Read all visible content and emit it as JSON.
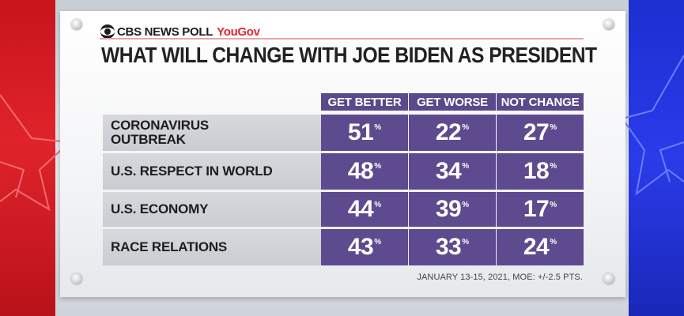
{
  "brand": {
    "network": "CBS NEWS POLL",
    "partner": "YouGov"
  },
  "title": "WHAT WILL CHANGE WITH JOE BIDEN AS PRESIDENT",
  "footnote": "JANUARY 13-15, 2021, MOE: +/-2.5 PTS.",
  "colors": {
    "header_bg": "#5a4a8c",
    "cell_bg": "#5e4a8e",
    "label_bg": "#cfd1d5",
    "yougov_red": "#e5262f",
    "left_bg": "#d51e26",
    "right_bg": "#2535dd"
  },
  "chart_data": {
    "type": "table",
    "title": "WHAT WILL CHANGE WITH JOE BIDEN AS PRESIDENT",
    "columns": [
      "GET BETTER",
      "GET WORSE",
      "NOT CHANGE"
    ],
    "rows": [
      {
        "label_lines": [
          "CORONAVIRUS",
          "OUTBREAK"
        ],
        "values": [
          51,
          22,
          27
        ]
      },
      {
        "label_lines": [
          "U.S. RESPECT IN WORLD"
        ],
        "values": [
          48,
          34,
          18
        ]
      },
      {
        "label_lines": [
          "U.S. ECONOMY"
        ],
        "values": [
          44,
          39,
          17
        ]
      },
      {
        "label_lines": [
          "RACE RELATIONS"
        ],
        "values": [
          43,
          33,
          24
        ]
      }
    ],
    "unit": "%"
  }
}
